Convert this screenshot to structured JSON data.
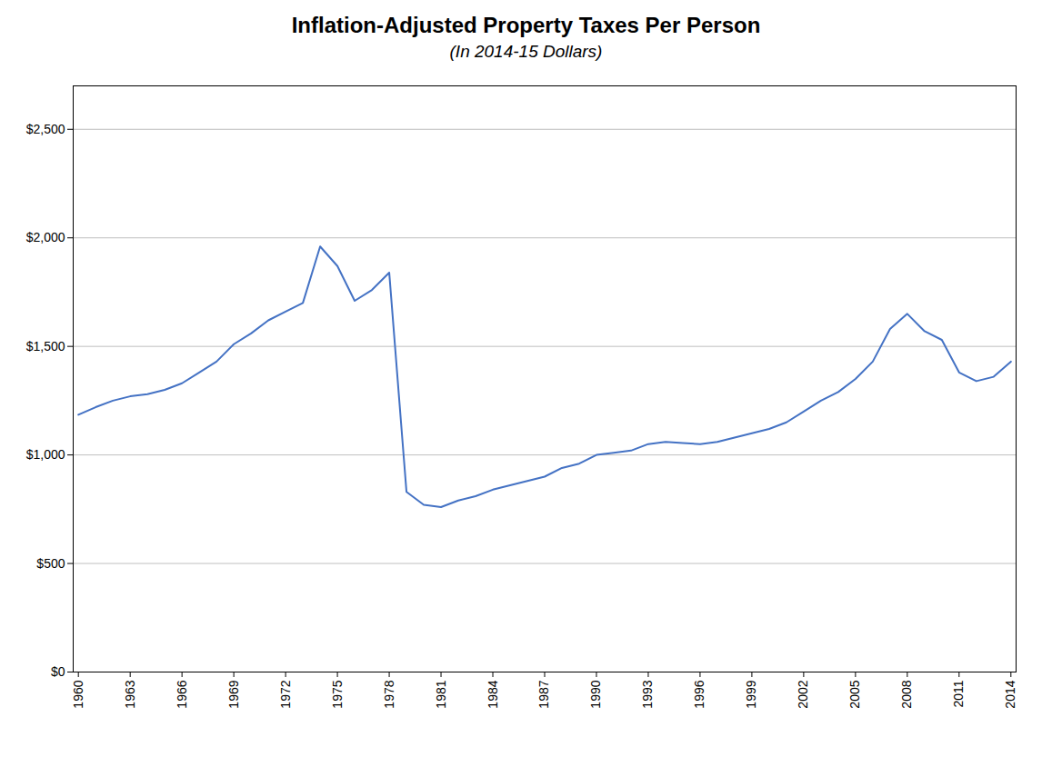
{
  "chart_data": {
    "type": "line",
    "title": "Inflation-Adjusted Property Taxes Per Person",
    "subtitle": "(In 2014-15 Dollars)",
    "x": [
      1960,
      1961,
      1962,
      1963,
      1964,
      1965,
      1966,
      1967,
      1968,
      1969,
      1970,
      1971,
      1972,
      1973,
      1974,
      1975,
      1976,
      1977,
      1978,
      1979,
      1980,
      1981,
      1982,
      1983,
      1984,
      1985,
      1986,
      1987,
      1988,
      1989,
      1990,
      1991,
      1992,
      1993,
      1994,
      1995,
      1996,
      1997,
      1998,
      1999,
      2000,
      2001,
      2002,
      2003,
      2004,
      2005,
      2006,
      2007,
      2008,
      2009,
      2010,
      2011,
      2012,
      2013,
      2014
    ],
    "values": [
      1185,
      1220,
      1250,
      1270,
      1280,
      1300,
      1330,
      1380,
      1430,
      1510,
      1560,
      1620,
      1660,
      1700,
      1960,
      1870,
      1710,
      1760,
      1840,
      830,
      770,
      760,
      790,
      810,
      840,
      860,
      880,
      900,
      940,
      960,
      1000,
      1010,
      1020,
      1050,
      1060,
      1055,
      1050,
      1060,
      1080,
      1100,
      1120,
      1150,
      1200,
      1250,
      1290,
      1350,
      1430,
      1580,
      1650,
      1570,
      1530,
      1380,
      1340,
      1360,
      1430
    ],
    "color": "#4472C4",
    "xlim": [
      1959.7,
      2014.3
    ],
    "xticks": [
      1960,
      1963,
      1966,
      1969,
      1972,
      1975,
      1978,
      1981,
      1984,
      1987,
      1990,
      1993,
      1996,
      1999,
      2002,
      2005,
      2008,
      2011,
      2014
    ],
    "ylim": [
      0,
      2700
    ],
    "yticks": [
      {
        "value": 0,
        "label": "$0"
      },
      {
        "value": 500,
        "label": "$500"
      },
      {
        "value": 1000,
        "label": "$1,000"
      },
      {
        "value": 1500,
        "label": "$1,500"
      },
      {
        "value": 2000,
        "label": "$2,000"
      },
      {
        "value": 2500,
        "label": "$2,500"
      }
    ],
    "grid": "y"
  }
}
